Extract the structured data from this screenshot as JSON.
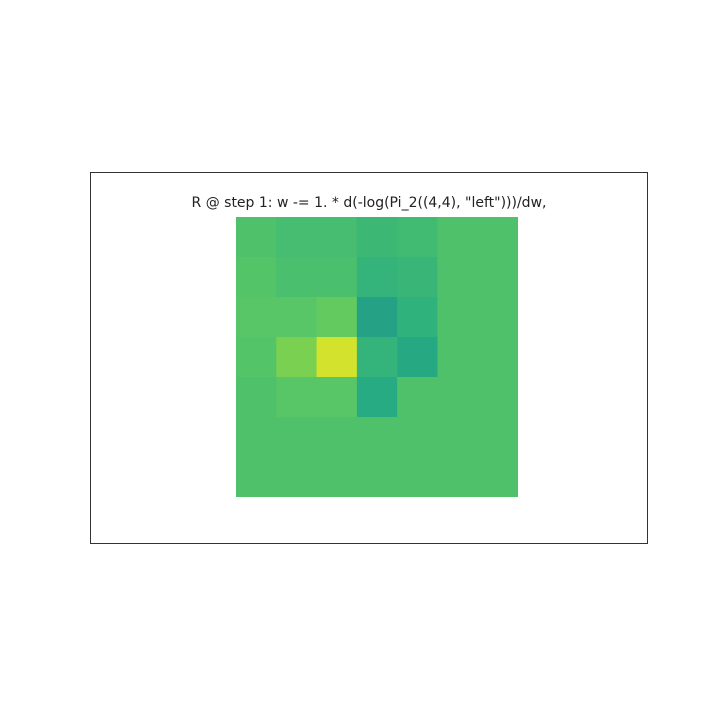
{
  "chart_data": {
    "type": "heatmap",
    "title": "R @ step 1: w -= 1. * d(-log(Pi_2((4,4), \"left\")))/dw,",
    "rows": 7,
    "cols": 7,
    "colormap": "viridis",
    "vmin": 0,
    "vmax": 1,
    "values": [
      [
        0.72,
        0.7,
        0.7,
        0.68,
        0.69,
        0.72,
        0.72
      ],
      [
        0.73,
        0.71,
        0.71,
        0.66,
        0.67,
        0.72,
        0.72
      ],
      [
        0.74,
        0.74,
        0.76,
        0.58,
        0.65,
        0.72,
        0.72
      ],
      [
        0.73,
        0.8,
        0.94,
        0.66,
        0.61,
        0.72,
        0.72
      ],
      [
        0.72,
        0.74,
        0.74,
        0.62,
        0.72,
        0.72,
        0.72
      ],
      [
        0.72,
        0.72,
        0.72,
        0.72,
        0.72,
        0.72,
        0.72
      ],
      [
        0.72,
        0.72,
        0.72,
        0.72,
        0.72,
        0.72,
        0.72
      ]
    ]
  },
  "colors": {
    "frame": "#333333",
    "background": "#ffffff",
    "title_text": "#222222"
  }
}
